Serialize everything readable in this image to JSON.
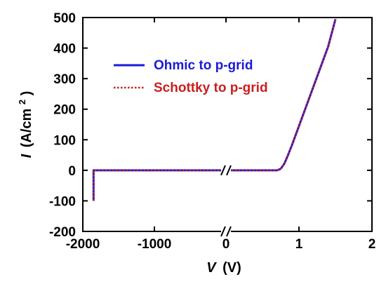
{
  "chart_data": {
    "type": "line",
    "title": "",
    "xlabel": {
      "symbol": "V",
      "unit": "(V)"
    },
    "ylabel": {
      "symbol": "I",
      "unit_open": "(A/cm",
      "unit_sup": "2",
      "unit_close": ")"
    },
    "axis_break": true,
    "x_segments": [
      {
        "range": [
          -2000,
          0
        ],
        "ticks": [
          -2000,
          -1000,
          0
        ],
        "tick_labels": [
          "-2000",
          "-1000",
          "0"
        ]
      },
      {
        "range": [
          0,
          2
        ],
        "ticks": [
          1,
          2
        ],
        "tick_labels": [
          "1",
          "2"
        ]
      }
    ],
    "ylim": [
      -200,
      500
    ],
    "yticks": [
      -200,
      -100,
      0,
      100,
      200,
      300,
      400,
      500
    ],
    "ytick_labels": [
      "-200",
      "-100",
      "0",
      "100",
      "200",
      "300",
      "400",
      "500"
    ],
    "grid": false,
    "legend_position": "top-left",
    "series": [
      {
        "name": "Ohmic to p-grid",
        "color": "#1a1adb",
        "style": "solid",
        "points": [
          [
            -1850,
            -100
          ],
          [
            -1850,
            -60
          ],
          [
            -1850,
            0
          ],
          [
            -1000,
            0
          ],
          [
            -150,
            0
          ],
          [
            0.0,
            0
          ],
          [
            0.7,
            0
          ],
          [
            0.75,
            5
          ],
          [
            0.8,
            22
          ],
          [
            0.85,
            50
          ],
          [
            0.9,
            80
          ],
          [
            1.0,
            145
          ],
          [
            1.1,
            210
          ],
          [
            1.2,
            275
          ],
          [
            1.3,
            340
          ],
          [
            1.4,
            405
          ],
          [
            1.5,
            495
          ]
        ]
      },
      {
        "name": "Schottky to p-grid",
        "color": "#c8201e",
        "style": "dotted",
        "points": [
          [
            -1850,
            -100
          ],
          [
            -1850,
            -60
          ],
          [
            -1850,
            0
          ],
          [
            -1000,
            0
          ],
          [
            -150,
            0
          ],
          [
            0.0,
            0
          ],
          [
            0.7,
            0
          ],
          [
            0.75,
            5
          ],
          [
            0.8,
            22
          ],
          [
            0.85,
            50
          ],
          [
            0.9,
            80
          ],
          [
            1.0,
            145
          ],
          [
            1.1,
            210
          ],
          [
            1.2,
            275
          ],
          [
            1.3,
            340
          ],
          [
            1.4,
            405
          ],
          [
            1.5,
            495
          ]
        ]
      }
    ]
  }
}
